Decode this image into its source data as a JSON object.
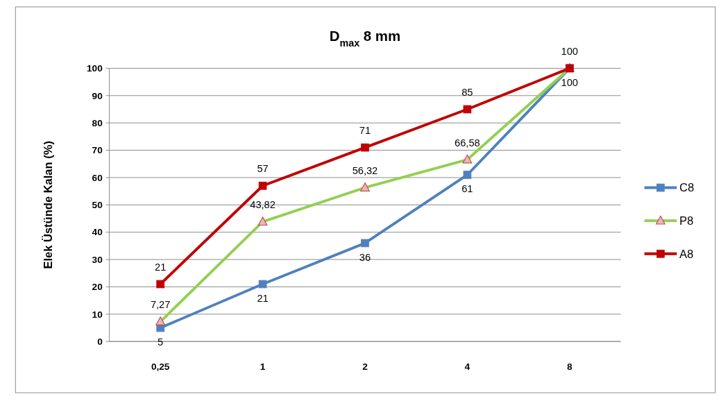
{
  "chart_data": {
    "type": "line",
    "title": "D$_{max}$ 8 mm",
    "ylabel": "Elek Üstünde Kalan (%)",
    "categories": [
      "0,25",
      "1",
      "2",
      "4",
      "8"
    ],
    "ylim": [
      0,
      100
    ],
    "yticks": [
      0,
      10,
      20,
      30,
      40,
      50,
      60,
      70,
      80,
      90,
      100
    ],
    "grid": "y",
    "legend": "right",
    "series": [
      {
        "name": "C8",
        "color": "#4f81bd",
        "marker": "square",
        "values": [
          5,
          21,
          36,
          61,
          100
        ],
        "value_labels": [
          "5",
          "21",
          "36",
          "61",
          "100"
        ]
      },
      {
        "name": "P8",
        "color": "#92d050",
        "marker": "triangle",
        "values": [
          7.27,
          43.82,
          56.32,
          66.58,
          100
        ],
        "value_labels": [
          "7,27",
          "43,82",
          "56,32",
          "66,58",
          null
        ]
      },
      {
        "name": "A8",
        "color": "#c00000",
        "marker": "square",
        "values": [
          21,
          57,
          71,
          85,
          100
        ],
        "value_labels": [
          "21",
          "57",
          "71",
          "85",
          "100"
        ]
      }
    ]
  }
}
